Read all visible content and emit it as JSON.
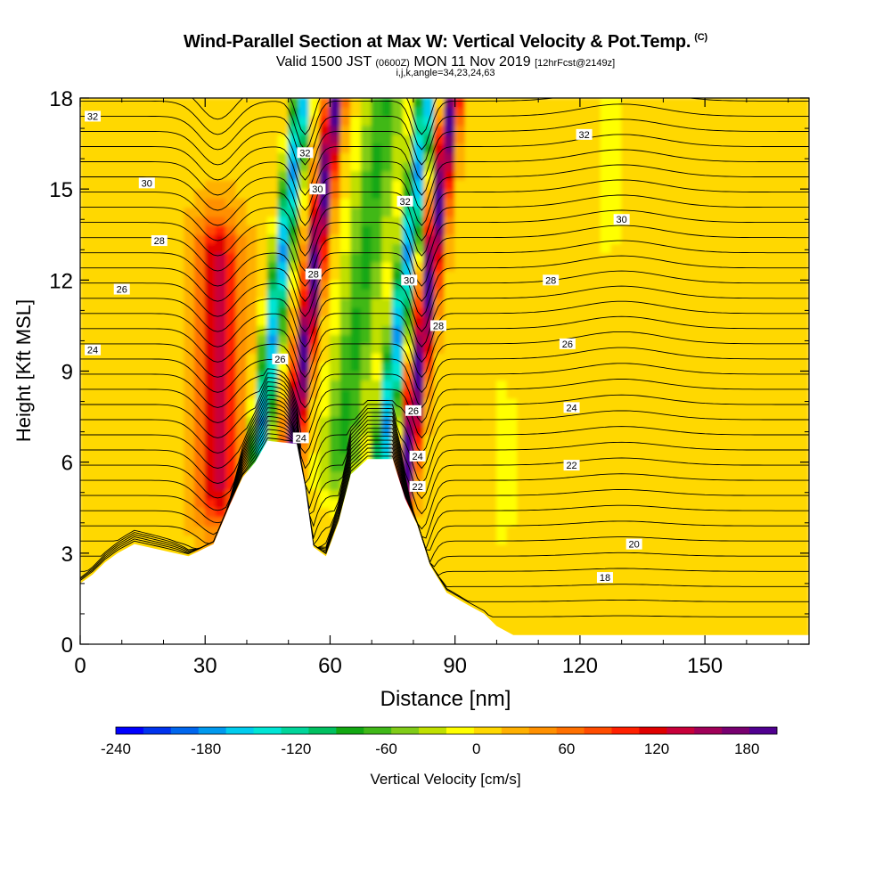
{
  "title": {
    "main": "Wind-Parallel Section at Max W: Vertical Velocity & Pot.Temp.",
    "copyright": "(C)",
    "valid_prefix": "Valid 1500 JST",
    "valid_utc": "(0600Z)",
    "valid_date": "MON 11 Nov 2019",
    "forecast": "[12hrFcst@2149z]",
    "indices": "i,j,k,angle=34,23,24,63"
  },
  "chart_data": {
    "type": "heatmap",
    "xlabel": "Distance [nm]",
    "ylabel": "Height [Kft MSL]",
    "xlim": [
      0,
      175
    ],
    "ylim": [
      0,
      18
    ],
    "x_ticks": [
      0,
      30,
      60,
      90,
      120,
      150
    ],
    "y_ticks": [
      0,
      3,
      6,
      9,
      12,
      15,
      18
    ],
    "colorbar": {
      "label": "Vertical Velocity [cm/s]",
      "range": [
        -240,
        200
      ],
      "ticks": [
        -240,
        -180,
        -120,
        -60,
        0,
        60,
        120,
        180
      ],
      "colors": [
        "#0000ff",
        "#0033ee",
        "#0066ee",
        "#0099ee",
        "#00ccee",
        "#00e5d5",
        "#00d59a",
        "#00c060",
        "#12a812",
        "#40b818",
        "#80cc18",
        "#c0e000",
        "#ffff00",
        "#ffd800",
        "#ffb000",
        "#ff9000",
        "#ff7000",
        "#ff4c00",
        "#ff2000",
        "#e00000",
        "#c8003a",
        "#a00058",
        "#780070",
        "#500090"
      ]
    },
    "series": [
      {
        "name": "Vertical Velocity",
        "bands": [
          {
            "x_center": 33,
            "y_range": [
              5,
              13
            ],
            "w": 120
          },
          {
            "x_center": 48,
            "y_range": [
              6.5,
              18
            ],
            "w": -180
          },
          {
            "x_center": 56,
            "y_range": [
              6,
              18
            ],
            "w": 180
          },
          {
            "x_center": 68,
            "y_range": [
              6,
              18
            ],
            "w": -90
          },
          {
            "x_center": 78,
            "y_range": [
              5,
              18
            ],
            "w": -180
          },
          {
            "x_center": 84,
            "y_range": [
              5,
              18
            ],
            "w": 180
          },
          {
            "x_center": 127,
            "y_range": [
              14,
              18
            ],
            "w": -30
          },
          {
            "x_center": 102,
            "y_range": [
              4,
              8
            ],
            "w": -20
          }
        ]
      },
      {
        "name": "Pot.Temp.",
        "contour_labels": [
          {
            "x": 3,
            "y": 17.4,
            "v": "32"
          },
          {
            "x": 16,
            "y": 15.2,
            "v": "30"
          },
          {
            "x": 19,
            "y": 13.3,
            "v": "28"
          },
          {
            "x": 10,
            "y": 11.7,
            "v": "26"
          },
          {
            "x": 3,
            "y": 9.7,
            "v": "24"
          },
          {
            "x": 54,
            "y": 16.2,
            "v": "32"
          },
          {
            "x": 57,
            "y": 15.0,
            "v": "30"
          },
          {
            "x": 56,
            "y": 12.2,
            "v": "28"
          },
          {
            "x": 48,
            "y": 9.4,
            "v": "26"
          },
          {
            "x": 53,
            "y": 6.8,
            "v": "24"
          },
          {
            "x": 78,
            "y": 14.6,
            "v": "32"
          },
          {
            "x": 79,
            "y": 12.0,
            "v": "30"
          },
          {
            "x": 86,
            "y": 10.5,
            "v": "28"
          },
          {
            "x": 80,
            "y": 7.7,
            "v": "26"
          },
          {
            "x": 81,
            "y": 6.2,
            "v": "24"
          },
          {
            "x": 81,
            "y": 5.2,
            "v": "22"
          },
          {
            "x": 121,
            "y": 16.8,
            "v": "32"
          },
          {
            "x": 130,
            "y": 14.0,
            "v": "30"
          },
          {
            "x": 113,
            "y": 12.0,
            "v": "28"
          },
          {
            "x": 117,
            "y": 9.9,
            "v": "26"
          },
          {
            "x": 118,
            "y": 7.8,
            "v": "24"
          },
          {
            "x": 118,
            "y": 5.9,
            "v": "22"
          },
          {
            "x": 133,
            "y": 3.3,
            "v": "20"
          },
          {
            "x": 126,
            "y": 2.2,
            "v": "18"
          }
        ]
      }
    ],
    "terrain": [
      [
        0,
        2
      ],
      [
        3,
        2.3
      ],
      [
        6,
        2.7
      ],
      [
        9,
        3
      ],
      [
        13,
        3.3
      ],
      [
        26,
        2.9
      ],
      [
        32,
        3.3
      ],
      [
        36,
        4.6
      ],
      [
        39,
        5.5
      ],
      [
        42,
        6.0
      ],
      [
        45,
        6.7
      ],
      [
        52,
        6.6
      ],
      [
        54,
        5.2
      ],
      [
        56,
        3.2
      ],
      [
        59,
        2.9
      ],
      [
        62,
        4.0
      ],
      [
        65,
        5.6
      ],
      [
        69,
        6.1
      ],
      [
        75,
        6.1
      ],
      [
        78,
        4.8
      ],
      [
        81,
        3.9
      ],
      [
        84,
        2.6
      ],
      [
        88,
        1.7
      ],
      [
        93,
        1.3
      ],
      [
        97,
        1.0
      ],
      [
        100,
        0.6
      ],
      [
        104,
        0.3
      ],
      [
        175,
        0.3
      ]
    ]
  }
}
